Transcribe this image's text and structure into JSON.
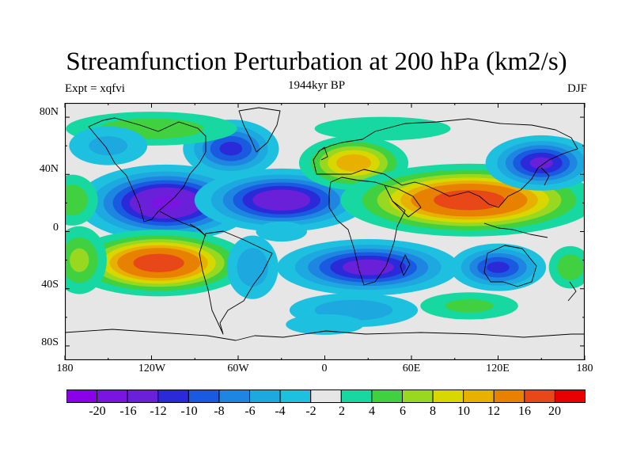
{
  "title": "Streamfunction Perturbation at 200 hPa (km2/s)",
  "left_label": "Expt = xqfvi",
  "center_label": "1944kyr BP",
  "right_label": "DJF",
  "lat_labels": [
    "80N",
    "40N",
    "0",
    "40S",
    "80S"
  ],
  "lon_labels": [
    "180",
    "120W",
    "60W",
    "0",
    "60E",
    "120E",
    "180"
  ],
  "colorbar": {
    "colors": [
      "#8a00e8",
      "#7a14e0",
      "#6a20d8",
      "#2a2ad8",
      "#1a5ae0",
      "#1e86e0",
      "#1ea8e0",
      "#1ec0e0",
      "#e6e6e6",
      "#16d8a0",
      "#40d040",
      "#98d820",
      "#d8d800",
      "#e8b000",
      "#e88000",
      "#e84818",
      "#e80000"
    ],
    "labels": [
      "-20",
      "-16",
      "-12",
      "-10",
      "-8",
      "-6",
      "-4",
      "-2",
      "2",
      "4",
      "6",
      "8",
      "10",
      "12",
      "16",
      "20"
    ]
  },
  "field_anomalies": [
    {
      "lon": -110,
      "lat": 20,
      "amp": -17,
      "sx": 30,
      "sy": 13
    },
    {
      "lon": -30,
      "lat": 22,
      "amp": -15,
      "sx": 30,
      "sy": 11
    },
    {
      "lon": -65,
      "lat": 58,
      "amp": -11,
      "sx": 18,
      "sy": 11
    },
    {
      "lon": 20,
      "lat": 48,
      "amp": 12,
      "sx": 20,
      "sy": 10
    },
    {
      "lon": 100,
      "lat": 22,
      "amp": 19,
      "sx": 42,
      "sy": 12
    },
    {
      "lon": 150,
      "lat": 48,
      "amp": -13,
      "sx": 20,
      "sy": 10
    },
    {
      "lon": -115,
      "lat": -22,
      "amp": 19,
      "sx": 30,
      "sy": 11
    },
    {
      "lon": 30,
      "lat": -25,
      "amp": -14,
      "sx": 32,
      "sy": 10
    },
    {
      "lon": 120,
      "lat": -25,
      "amp": -11,
      "sx": 18,
      "sy": 9
    },
    {
      "lon": -50,
      "lat": -25,
      "amp": -6,
      "sx": 12,
      "sy": 15
    },
    {
      "lon": -120,
      "lat": 72,
      "amp": 6,
      "sx": 40,
      "sy": 8
    },
    {
      "lon": 40,
      "lat": 72,
      "amp": 4,
      "sx": 40,
      "sy": 7
    },
    {
      "lon": -175,
      "lat": 22,
      "amp": 6,
      "sx": 12,
      "sy": 12
    },
    {
      "lon": -170,
      "lat": -20,
      "amp": 7,
      "sx": 12,
      "sy": 15
    },
    {
      "lon": -150,
      "lat": 60,
      "amp": -5,
      "sx": 20,
      "sy": 10
    },
    {
      "lon": 20,
      "lat": -55,
      "amp": -6,
      "sx": 30,
      "sy": 8
    },
    {
      "lon": 100,
      "lat": -52,
      "amp": 5,
      "sx": 25,
      "sy": 7
    },
    {
      "lon": 170,
      "lat": -25,
      "amp": 6,
      "sx": 10,
      "sy": 10
    },
    {
      "lon": -30,
      "lat": 0,
      "amp": -4,
      "sx": 15,
      "sy": 6
    },
    {
      "lon": 0,
      "lat": -65,
      "amp": -3,
      "sx": 30,
      "sy": 8
    }
  ]
}
